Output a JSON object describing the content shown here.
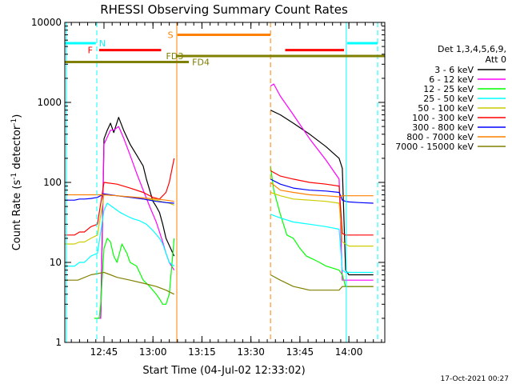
{
  "chart_data": {
    "type": "line",
    "title": "RHESSI Observing Summary Count Rates",
    "xlabel": "Start Time (04-Jul-02 12:33:02)",
    "ylabel": "Count Rate (s⁻¹ detector⁻¹)",
    "ylabel_parts": {
      "prefix": "Count Rate (s",
      "exp1": "-1",
      "mid": " detector",
      "exp2": "-1",
      "suffix": ")"
    },
    "yscale": "log",
    "ylim": [
      1,
      10000
    ],
    "xlim": [
      0,
      98
    ],
    "xunit": "minutes since 12:33:02",
    "x_ticks": [
      {
        "label": "12:45",
        "value": 12
      },
      {
        "label": "13:00",
        "value": 27
      },
      {
        "label": "13:15",
        "value": 42
      },
      {
        "label": "13:30",
        "value": 57
      },
      {
        "label": "13:45",
        "value": 72
      },
      {
        "label": "14:00",
        "value": 87
      }
    ],
    "y_ticks": [
      {
        "label": "1",
        "value": 1
      },
      {
        "label": "10",
        "value": 10
      },
      {
        "label": "100",
        "value": 100
      },
      {
        "label": "1000",
        "value": 1000
      },
      {
        "label": "10000",
        "value": 10000
      }
    ],
    "legend_position": "right",
    "legend_header": [
      "Det 1,3,4,5,6,9,",
      "Att 0"
    ],
    "footer_date": "17-Oct-2021 00:27",
    "series": [
      {
        "name": "3 - 6 keV",
        "color": "#000000",
        "x": [
          10.5,
          11,
          12,
          13,
          14,
          15,
          16.5,
          18,
          20,
          22,
          24,
          25,
          26,
          27,
          28,
          29,
          30,
          31,
          33.5,
          40,
          46,
          52,
          62,
          63,
          66,
          70,
          75,
          80,
          84,
          85,
          86,
          87,
          90,
          94.5
        ],
        "y": [
          2,
          2,
          350,
          450,
          550,
          420,
          650,
          450,
          300,
          220,
          160,
          110,
          80,
          58,
          50,
          42,
          30,
          20,
          12,
          null,
          null,
          null,
          null,
          800,
          700,
          550,
          400,
          280,
          200,
          150,
          8,
          7,
          7,
          7
        ]
      },
      {
        "name": "6 - 12 keV",
        "color": "#ff00ff",
        "x": [
          7,
          9,
          10,
          10.5,
          11,
          12,
          14,
          15,
          16.5,
          18,
          20,
          22,
          24,
          26,
          27,
          28,
          29,
          30,
          31,
          32,
          33.5,
          40,
          46,
          52,
          62,
          63,
          64,
          66,
          70,
          75,
          80,
          84,
          85,
          86,
          87,
          90,
          94.5
        ],
        "y": [
          null,
          null,
          2,
          2,
          2,
          300,
          450,
          450,
          500,
          360,
          220,
          130,
          80,
          50,
          40,
          32,
          24,
          18,
          13,
          10,
          8,
          null,
          null,
          null,
          null,
          1600,
          1700,
          1200,
          700,
          350,
          190,
          110,
          6,
          6,
          6,
          6,
          6
        ]
      },
      {
        "name": "12 - 25 keV",
        "color": "#00ff00",
        "x": [
          6,
          8,
          9,
          10,
          10.5,
          11,
          12,
          13,
          14,
          15,
          16,
          17.5,
          19,
          20,
          22,
          24,
          26,
          28,
          29,
          30,
          31,
          32,
          33.5,
          40,
          46,
          52,
          62,
          63,
          64,
          66,
          68,
          70,
          72,
          74,
          76,
          78,
          80,
          82,
          84,
          85,
          86,
          87,
          90,
          94.5
        ],
        "y": [
          null,
          null,
          2,
          2,
          2,
          3,
          15,
          20,
          18,
          12,
          10,
          17,
          13,
          10,
          9,
          6,
          5,
          4,
          3.5,
          3,
          3,
          4,
          20,
          null,
          null,
          null,
          null,
          160,
          80,
          40,
          22,
          20,
          15,
          12,
          11,
          10,
          9,
          8.5,
          8,
          7,
          5,
          5,
          5,
          5
        ]
      },
      {
        "name": "25 - 50 keV",
        "color": "#00ffff",
        "x": [
          0,
          3,
          4.5,
          6,
          8,
          10,
          12,
          13,
          15,
          17,
          19,
          21,
          23,
          25,
          27,
          29,
          30,
          31,
          32,
          33.5,
          40,
          46,
          52,
          62,
          63,
          66,
          70,
          75,
          80,
          84,
          85,
          86,
          87,
          90,
          94.5
        ],
        "y": [
          9,
          9,
          10,
          10,
          12,
          13,
          45,
          55,
          48,
          42,
          38,
          35,
          33,
          30,
          25,
          20,
          17,
          13,
          10,
          9,
          null,
          null,
          null,
          null,
          40,
          36,
          32,
          30,
          28,
          26,
          8,
          7.5,
          7.5,
          7.5,
          7.5
        ]
      },
      {
        "name": "50 - 100 keV",
        "color": "#cccc00",
        "x": [
          0,
          3,
          4.5,
          6,
          8,
          10,
          12,
          16,
          20,
          24,
          28,
          30,
          32,
          33.5,
          40,
          46,
          52,
          62,
          63,
          66,
          70,
          75,
          80,
          84,
          85,
          86,
          87,
          90,
          94.5
        ],
        "y": [
          17,
          17,
          18,
          18,
          20,
          22,
          70,
          68,
          65,
          62,
          60,
          57,
          55,
          52,
          null,
          null,
          null,
          null,
          75,
          68,
          62,
          60,
          58,
          55,
          18,
          17,
          16,
          16,
          16
        ]
      },
      {
        "name": "100 - 300 keV",
        "color": "#ff0000",
        "x": [
          0,
          3,
          4.5,
          6,
          8,
          10,
          12,
          16,
          20,
          24,
          27,
          29,
          31,
          32,
          33.5,
          40,
          46,
          52,
          62,
          63,
          66,
          70,
          75,
          80,
          84,
          85,
          86,
          87,
          90,
          94.5
        ],
        "y": [
          22,
          22,
          24,
          24,
          28,
          30,
          100,
          95,
          85,
          75,
          65,
          62,
          75,
          100,
          200,
          null,
          null,
          null,
          null,
          140,
          120,
          110,
          100,
          95,
          90,
          23,
          22,
          22,
          22,
          22
        ]
      },
      {
        "name": "300 - 800 keV",
        "color": "#0000ff",
        "x": [
          0,
          3,
          4.5,
          6,
          8,
          10,
          12,
          16,
          20,
          24,
          28,
          31,
          33.5,
          40,
          46,
          52,
          62,
          63,
          66,
          70,
          75,
          80,
          84,
          85,
          86,
          87,
          90,
          94.5
        ],
        "y": [
          60,
          60,
          62,
          62,
          63,
          65,
          72,
          68,
          65,
          62,
          58,
          56,
          55,
          null,
          null,
          null,
          null,
          110,
          95,
          85,
          80,
          78,
          75,
          60,
          58,
          57,
          56,
          55
        ]
      },
      {
        "name": "800 - 7000 keV",
        "color": "#ff8000",
        "x": [
          0,
          3,
          6,
          10,
          12,
          16,
          20,
          24,
          28,
          31,
          33.5,
          40,
          46,
          52,
          62,
          63,
          66,
          70,
          75,
          80,
          84,
          85,
          86,
          87,
          90,
          94.5
        ],
        "y": [
          70,
          70,
          70,
          70,
          70,
          68,
          66,
          64,
          62,
          60,
          58,
          null,
          null,
          null,
          null,
          100,
          80,
          75,
          70,
          68,
          66,
          68,
          68,
          68,
          68,
          68
        ]
      },
      {
        "name": "7000 - 15000 keV",
        "color": "#808000",
        "x": [
          0,
          4,
          8,
          12,
          14,
          16,
          20,
          24,
          28,
          31,
          33.5,
          40,
          46,
          52,
          62,
          63,
          66,
          70,
          75,
          80,
          84,
          85,
          86,
          87,
          90,
          94.5
        ],
        "y": [
          6,
          6,
          7,
          7.5,
          7,
          6.5,
          6,
          5.5,
          5,
          4.5,
          4,
          null,
          null,
          null,
          null,
          7,
          6,
          5,
          4.5,
          4.5,
          4.5,
          5,
          5,
          5,
          5,
          5
        ]
      }
    ],
    "state_bars": [
      {
        "label": "N",
        "color": "#00ffff",
        "start": 0,
        "end": 9.5,
        "level": 5500,
        "label_at": 10.5
      },
      {
        "label": "",
        "color": "#00ffff",
        "start": 86.5,
        "end": 95.8,
        "level": 5500
      },
      {
        "label": "S",
        "color": "#ff8000",
        "start": 34.5,
        "end": 63,
        "level": 7000,
        "label_at": 31.5
      },
      {
        "label": "F",
        "color": "#ff0000",
        "start": 10.5,
        "end": 29.5,
        "level": 4500,
        "label_at": 7
      },
      {
        "label": "",
        "color": "#ff0000",
        "start": 67.5,
        "end": 85.5,
        "level": 4500
      },
      {
        "label": "FD3",
        "color": "#808000",
        "start": 34,
        "end": 98,
        "level": 3800,
        "label_at": 31
      },
      {
        "label": "FD4",
        "color": "#808000",
        "start": 0,
        "end": 38,
        "level": 3200,
        "label_at": 39
      }
    ],
    "vertical_markers": [
      {
        "x": 0.5,
        "color": "#00ffff",
        "style": "solid"
      },
      {
        "x": 9.8,
        "color": "#00ffff",
        "style": "dashed"
      },
      {
        "x": 34.3,
        "color": "#ff8000",
        "style": "solid"
      },
      {
        "x": 63,
        "color": "#ff8000",
        "style": "dashed"
      },
      {
        "x": 86.2,
        "color": "#00ffff",
        "style": "solid"
      },
      {
        "x": 95.8,
        "color": "#00ffff",
        "style": "dashed"
      }
    ]
  }
}
